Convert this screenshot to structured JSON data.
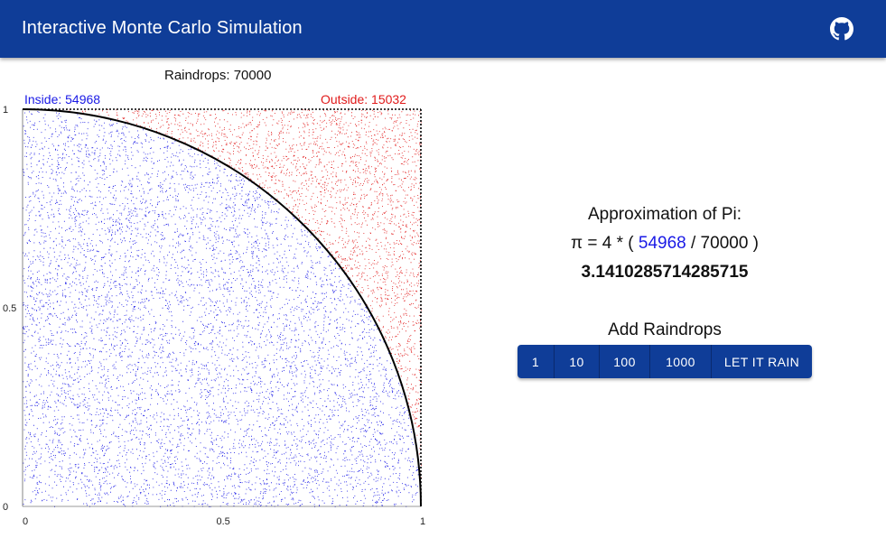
{
  "app": {
    "title": "Interactive Monte Carlo Simulation",
    "github_icon": "github-icon"
  },
  "simulation": {
    "raindrops_label": "Raindrops: 70000",
    "inside_label": "Inside: 54968",
    "outside_label": "Outside: 15032",
    "total": 70000,
    "inside": 54968,
    "outside": 15032
  },
  "chart_data": {
    "type": "scatter",
    "title": "Raindrops: 70000",
    "xlim": [
      0,
      1
    ],
    "ylim": [
      0,
      1
    ],
    "x_ticks": [
      "0",
      "0.5",
      "1"
    ],
    "y_ticks": [
      "0",
      "0.5",
      "1"
    ],
    "series": [
      {
        "name": "Inside: 54968",
        "count": 54968,
        "color": "#1a1ae6"
      },
      {
        "name": "Outside: 15032",
        "count": 15032,
        "color": "#e11b1b"
      }
    ],
    "curve": "quarter circle x^2 + y^2 = 1"
  },
  "approximation": {
    "heading": "Approximation of Pi:",
    "formula_prefix": "π = 4 * ( ",
    "formula_inside": "54968",
    "formula_suffix": " / 70000 )",
    "result": "3.1410285714285715"
  },
  "controls": {
    "heading": "Add Raindrops",
    "buttons": [
      "1",
      "10",
      "100",
      "1000",
      "LET IT RAIN"
    ]
  },
  "colors": {
    "primary": "#0f3d98",
    "inside": "#1a1ae6",
    "outside": "#e11b1b"
  }
}
